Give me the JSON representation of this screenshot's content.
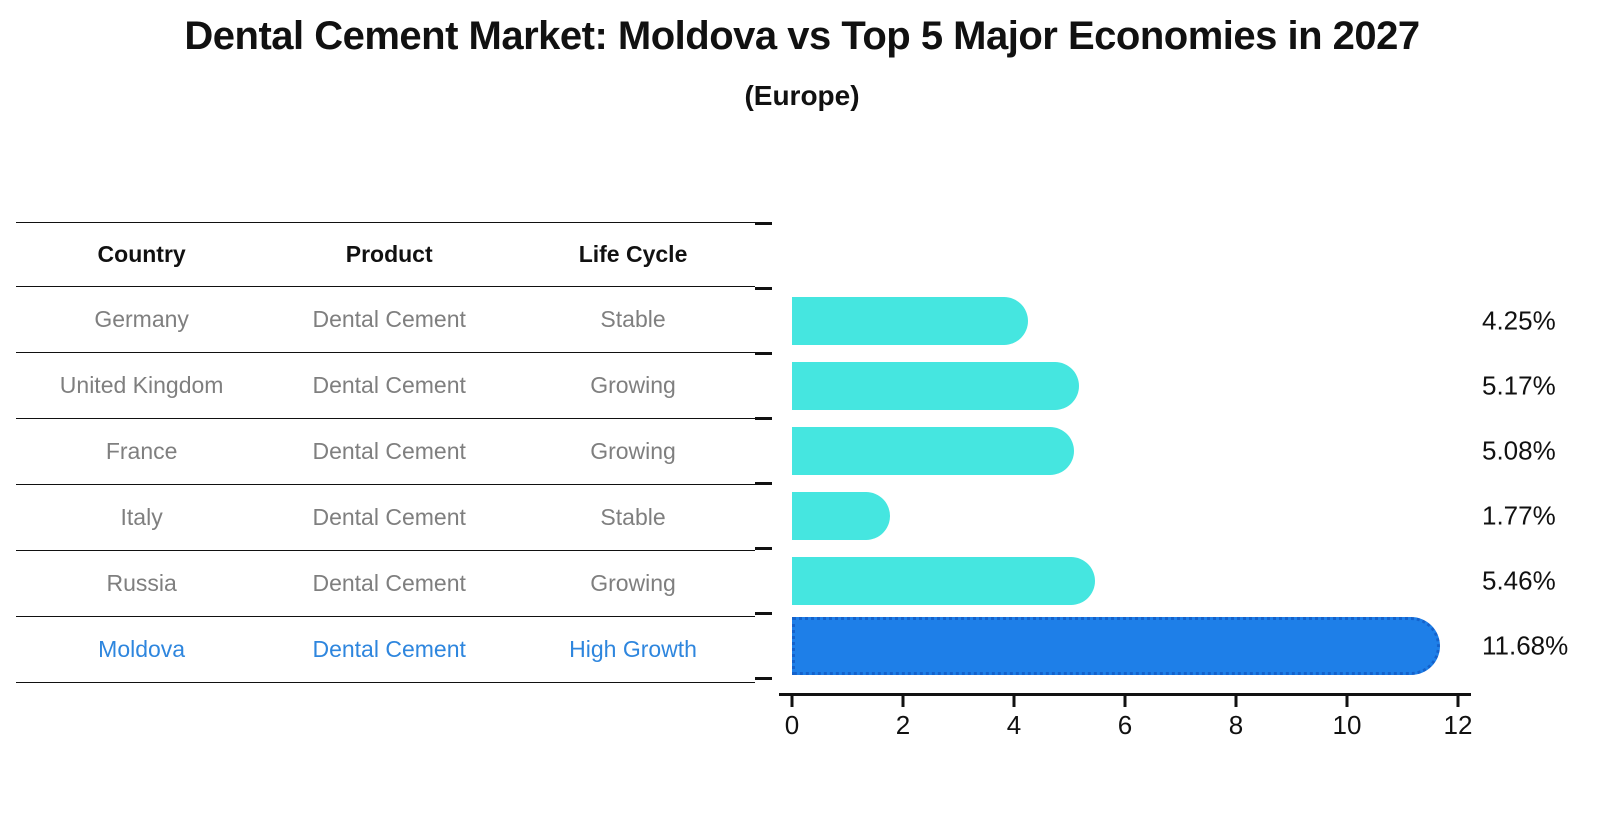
{
  "title": "Dental Cement Market: Moldova vs Top 5 Major Economies in 2027",
  "subtitle": "(Europe)",
  "table": {
    "headers": [
      "Country",
      "Product",
      "Life Cycle"
    ],
    "rows": [
      {
        "country": "Germany",
        "product": "Dental Cement",
        "life_cycle": "Stable",
        "highlight": false
      },
      {
        "country": "United Kingdom",
        "product": "Dental Cement",
        "life_cycle": "Growing",
        "highlight": false
      },
      {
        "country": "France",
        "product": "Dental Cement",
        "life_cycle": "Growing",
        "highlight": false
      },
      {
        "country": "Italy",
        "product": "Dental Cement",
        "life_cycle": "Stable",
        "highlight": false
      },
      {
        "country": "Russia",
        "product": "Dental Cement",
        "life_cycle": "Growing",
        "highlight": false
      },
      {
        "country": "Moldova",
        "product": "Dental Cement",
        "life_cycle": "High Growth",
        "highlight": true
      }
    ]
  },
  "chart_data": {
    "type": "bar",
    "orientation": "horizontal",
    "categories": [
      "Germany",
      "United Kingdom",
      "France",
      "Italy",
      "Russia",
      "Moldova"
    ],
    "values": [
      4.25,
      5.17,
      5.08,
      1.77,
      5.46,
      11.68
    ],
    "value_labels": [
      "4.25%",
      "5.17%",
      "5.08%",
      "1.77%",
      "5.46%",
      "11.68%"
    ],
    "highlight_index": 5,
    "xlim": [
      0,
      12
    ],
    "xticks": [
      0,
      2,
      4,
      6,
      8,
      10,
      12
    ],
    "grid": false,
    "legend": "none",
    "title": "",
    "xlabel": "",
    "ylabel": ""
  },
  "colors": {
    "bg": "#ffffff",
    "text": "#111111",
    "muted": "#7f7f7f",
    "line": "#111111",
    "hl-text": "#2e86de",
    "bar-fill": "#45e6e0",
    "bar-hl": "#1e7fe8",
    "bar-hl-border": "#1462cc"
  }
}
